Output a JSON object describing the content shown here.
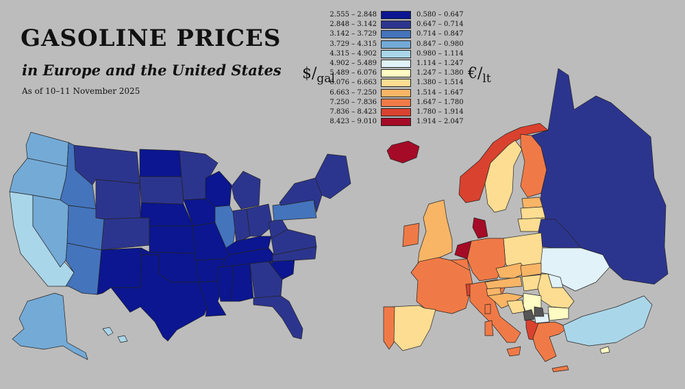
{
  "title": "GASOLINE PRICES",
  "subtitle": "in Europe and the United States",
  "as_of": "As of 10–11 November 2025",
  "units": {
    "usd_top": "$",
    "usd_bottom": "gal",
    "eur_top": "€",
    "eur_bottom": "lt"
  },
  "legend": [
    {
      "usd": "2.555 – 2.848",
      "eur": "0.580 – 0.647",
      "color": "#0b1690"
    },
    {
      "usd": "2.848 – 3.142",
      "eur": "0.647 – 0.714",
      "color": "#2c358e"
    },
    {
      "usd": "3.142 – 3.729",
      "eur": "0.714 – 0.847",
      "color": "#4474bc"
    },
    {
      "usd": "3.729 – 4.315",
      "eur": "0.847 – 0.980",
      "color": "#74aad6"
    },
    {
      "usd": "4.315 – 4.902",
      "eur": "0.980 – 1.114",
      "color": "#aad6ea"
    },
    {
      "usd": "4.902 – 5.489",
      "eur": "1.114 – 1.247",
      "color": "#e1f2f8"
    },
    {
      "usd": "5.489 – 6.076",
      "eur": "1.247 – 1.380",
      "color": "#fefbc3"
    },
    {
      "usd": "6.076 – 6.663",
      "eur": "1.380 – 1.514",
      "color": "#fcdd92"
    },
    {
      "usd": "6.663 – 7.250",
      "eur": "1.514 – 1.647",
      "color": "#f9b566"
    },
    {
      "usd": "7.250 – 7.836",
      "eur": "1.647 – 1.780",
      "color": "#f07a47"
    },
    {
      "usd": "7.836 – 8.423",
      "eur": "1.780 – 1.914",
      "color": "#d9422e"
    },
    {
      "usd": "8.423 – 9.010",
      "eur": "1.914 – 2.047",
      "color": "#a50b26"
    }
  ],
  "no_data_color": "#555555",
  "regions": [
    {
      "name": "Washington",
      "bin": 3
    },
    {
      "name": "Oregon",
      "bin": 3
    },
    {
      "name": "California",
      "bin": 4
    },
    {
      "name": "Nevada",
      "bin": 3
    },
    {
      "name": "Idaho",
      "bin": 2
    },
    {
      "name": "Utah",
      "bin": 2
    },
    {
      "name": "Arizona",
      "bin": 2
    },
    {
      "name": "Montana",
      "bin": 1
    },
    {
      "name": "Wyoming",
      "bin": 1
    },
    {
      "name": "Colorado",
      "bin": 1
    },
    {
      "name": "New Mexico",
      "bin": 0
    },
    {
      "name": "North Dakota",
      "bin": 0
    },
    {
      "name": "South Dakota",
      "bin": 1
    },
    {
      "name": "Nebraska",
      "bin": 0
    },
    {
      "name": "Kansas",
      "bin": 0
    },
    {
      "name": "Oklahoma",
      "bin": 0
    },
    {
      "name": "Texas",
      "bin": 0
    },
    {
      "name": "Minnesota",
      "bin": 1
    },
    {
      "name": "Iowa",
      "bin": 0
    },
    {
      "name": "Missouri",
      "bin": 0
    },
    {
      "name": "Arkansas",
      "bin": 0
    },
    {
      "name": "Louisiana",
      "bin": 0
    },
    {
      "name": "Wisconsin",
      "bin": 0
    },
    {
      "name": "Illinois",
      "bin": 2
    },
    {
      "name": "Michigan",
      "bin": 1
    },
    {
      "name": "Indiana",
      "bin": 1
    },
    {
      "name": "Ohio",
      "bin": 1
    },
    {
      "name": "Kentucky",
      "bin": 0
    },
    {
      "name": "Tennessee",
      "bin": 0
    },
    {
      "name": "Mississippi",
      "bin": 0
    },
    {
      "name": "Alabama",
      "bin": 0
    },
    {
      "name": "Georgia",
      "bin": 1
    },
    {
      "name": "Florida",
      "bin": 1
    },
    {
      "name": "South Carolina",
      "bin": 0
    },
    {
      "name": "North Carolina",
      "bin": 1
    },
    {
      "name": "Virginia",
      "bin": 1
    },
    {
      "name": "West Virginia",
      "bin": 1
    },
    {
      "name": "Pennsylvania",
      "bin": 2
    },
    {
      "name": "New York",
      "bin": 1
    },
    {
      "name": "New England",
      "bin": 1
    },
    {
      "name": "Alaska",
      "bin": 3
    },
    {
      "name": "Hawaii",
      "bin": 4
    },
    {
      "name": "Iceland",
      "bin": 11
    },
    {
      "name": "Norway",
      "bin": 10
    },
    {
      "name": "Sweden",
      "bin": 7
    },
    {
      "name": "Finland",
      "bin": 9
    },
    {
      "name": "Russia",
      "bin": 1
    },
    {
      "name": "Estonia",
      "bin": 8
    },
    {
      "name": "Latvia",
      "bin": 7
    },
    {
      "name": "Lithuania",
      "bin": 7
    },
    {
      "name": "Belarus",
      "bin": 1
    },
    {
      "name": "Ukraine",
      "bin": 5
    },
    {
      "name": "Moldova",
      "bin": 5
    },
    {
      "name": "Poland",
      "bin": 7
    },
    {
      "name": "Germany",
      "bin": 9
    },
    {
      "name": "Denmark",
      "bin": 11
    },
    {
      "name": "Netherlands",
      "bin": 11
    },
    {
      "name": "Belgium",
      "bin": 9
    },
    {
      "name": "United Kingdom",
      "bin": 8
    },
    {
      "name": "Ireland",
      "bin": 9
    },
    {
      "name": "France",
      "bin": 9
    },
    {
      "name": "Spain",
      "bin": 7
    },
    {
      "name": "Portugal",
      "bin": 9
    },
    {
      "name": "Switzerland",
      "bin": 10
    },
    {
      "name": "Italy",
      "bin": 9
    },
    {
      "name": "Austria",
      "bin": 8
    },
    {
      "name": "Czechia",
      "bin": 8
    },
    {
      "name": "Slovakia",
      "bin": 8
    },
    {
      "name": "Hungary",
      "bin": 7
    },
    {
      "name": "Romania",
      "bin": 7
    },
    {
      "name": "Bulgaria",
      "bin": 6
    },
    {
      "name": "Slovenia",
      "bin": 8
    },
    {
      "name": "Croatia",
      "bin": 8
    },
    {
      "name": "Bosnia",
      "bin": 7
    },
    {
      "name": "Serbia",
      "bin": 6
    },
    {
      "name": "Albania",
      "bin": 10
    },
    {
      "name": "North Macedonia",
      "bin": 5
    },
    {
      "name": "Greece",
      "bin": 9
    },
    {
      "name": "Turkey",
      "bin": 4
    },
    {
      "name": "Cyprus",
      "bin": 6
    },
    {
      "name": "Sicily",
      "bin": 9
    },
    {
      "name": "Sardinia",
      "bin": 9
    },
    {
      "name": "Corsica",
      "bin": 9
    },
    {
      "name": "Crete",
      "bin": 9
    }
  ]
}
